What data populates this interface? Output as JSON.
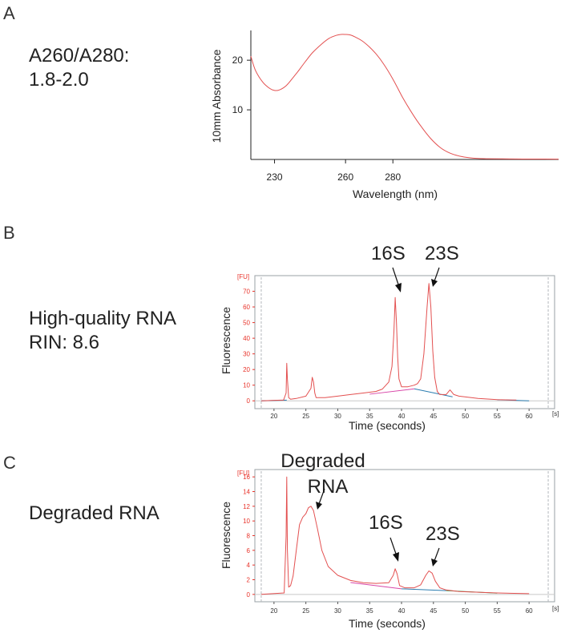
{
  "panels": [
    {
      "letter": "A",
      "side_text": [
        "A260/A280:",
        "1.8-2.0"
      ]
    },
    {
      "letter": "B",
      "side_text": [
        "High-quality RNA",
        "RIN: 8.6"
      ]
    },
    {
      "letter": "C",
      "side_text": [
        "Degraded RNA"
      ]
    }
  ],
  "colors": {
    "trace": "#e35050",
    "axis_red": "#e8332a",
    "baseline_blue": "#2b7db0",
    "baseline_pink": "#d846a8",
    "baseline_green": "#3a9a4a",
    "border": "#9aa0a6"
  },
  "chart_data": [
    {
      "id": "absorbance",
      "type": "line",
      "title": "",
      "xlabel": "Wavelength (nm)",
      "ylabel": "10mm Absorbance",
      "xlim": [
        220,
        350
      ],
      "ylim": [
        0,
        26
      ],
      "xticks": [
        230,
        260,
        280
      ],
      "yticks": [
        10,
        20
      ],
      "x": [
        220,
        222,
        225,
        228,
        230,
        232,
        235,
        238,
        240,
        243,
        246,
        250,
        253,
        256,
        258,
        260,
        262,
        264,
        267,
        270,
        273,
        276,
        280,
        284,
        288,
        292,
        296,
        300,
        304,
        308,
        312,
        316,
        320,
        330,
        340,
        350
      ],
      "y": [
        20.8,
        17.9,
        15.6,
        14.3,
        13.9,
        14.0,
        14.9,
        16.6,
        17.8,
        19.7,
        21.5,
        23.3,
        24.4,
        25.0,
        25.2,
        25.2,
        25.1,
        24.7,
        23.9,
        22.7,
        21.2,
        19.3,
        16.2,
        12.6,
        9.4,
        6.6,
        4.2,
        2.4,
        1.3,
        0.7,
        0.35,
        0.2,
        0.15,
        0.1,
        0.08,
        0.06
      ]
    },
    {
      "id": "electropherogram-high",
      "type": "line",
      "title": "",
      "xlabel": "Time (seconds)",
      "ylabel": "Fluorescence",
      "unit_y": "[FU]",
      "unit_x": "[s]",
      "xlim": [
        17,
        64
      ],
      "ylim": [
        -5,
        80
      ],
      "xticks": [
        20,
        25,
        30,
        35,
        40,
        45,
        50,
        55,
        60
      ],
      "yticks": [
        0,
        10,
        20,
        30,
        40,
        50,
        60,
        70
      ],
      "annotations": [
        "16S",
        "23S"
      ],
      "x": [
        18.0,
        21.5,
        21.9,
        22.0,
        22.1,
        22.3,
        22.6,
        23.5,
        25.0,
        25.8,
        26.0,
        26.2,
        26.4,
        26.6,
        28.0,
        30.0,
        32.0,
        34.0,
        36.0,
        37.0,
        38.0,
        38.5,
        38.8,
        39.0,
        39.2,
        39.4,
        39.6,
        40.0,
        41.0,
        42.0,
        42.5,
        43.0,
        43.5,
        44.0,
        44.3,
        44.6,
        44.9,
        45.2,
        45.6,
        46.0,
        47.0,
        47.6,
        48.2,
        49.0,
        52.0,
        55.0,
        58.0
      ],
      "y": [
        0.0,
        0.5,
        5.0,
        24.0,
        14.0,
        2.0,
        1.0,
        1.5,
        3.0,
        8.0,
        15.0,
        12.0,
        5.0,
        2.0,
        2.0,
        3.0,
        4.0,
        5.0,
        6.0,
        7.5,
        12.0,
        22.0,
        44.0,
        66.0,
        50.0,
        28.0,
        14.0,
        9.0,
        9.0,
        10.0,
        11.0,
        14.0,
        30.0,
        60.0,
        75.0,
        60.0,
        32.0,
        15.0,
        6.0,
        4.0,
        4.0,
        7.0,
        4.0,
        3.0,
        1.5,
        0.8,
        0.5
      ],
      "baseline_segments": [
        {
          "color": "baseline_blue",
          "x": [
            18,
            22
          ]
        },
        {
          "color": "baseline_pink",
          "x": [
            35,
            42
          ]
        },
        {
          "color": "baseline_blue",
          "x": [
            42,
            48
          ]
        },
        {
          "color": "baseline_blue",
          "x": [
            55,
            60
          ]
        }
      ]
    },
    {
      "id": "electropherogram-degraded",
      "type": "line",
      "title": "",
      "xlabel": "Time (seconds)",
      "ylabel": "Fluorescence",
      "unit_y": "[FU]",
      "unit_x": "[s]",
      "xlim": [
        17,
        64
      ],
      "ylim": [
        -1,
        17
      ],
      "xticks": [
        20,
        25,
        30,
        35,
        40,
        45,
        50,
        55,
        60
      ],
      "yticks": [
        0,
        2,
        4,
        6,
        8,
        10,
        12,
        14,
        16
      ],
      "annotations": [
        "Degraded RNA",
        "16S",
        "23S"
      ],
      "x": [
        18.0,
        21.6,
        21.9,
        22.0,
        22.1,
        22.3,
        22.6,
        23.0,
        23.5,
        24.0,
        24.5,
        25.0,
        25.4,
        25.8,
        26.2,
        26.8,
        27.5,
        28.5,
        30.0,
        32.0,
        34.0,
        36.0,
        38.0,
        38.7,
        39.0,
        39.3,
        39.7,
        40.5,
        42.0,
        43.0,
        43.8,
        44.3,
        44.8,
        45.3,
        46.0,
        47.0,
        49.0,
        52.0,
        55.0,
        60.0
      ],
      "y": [
        0.0,
        0.2,
        8.0,
        16.0,
        6.0,
        1.0,
        1.2,
        2.5,
        6.0,
        9.5,
        10.5,
        11.0,
        11.8,
        12.0,
        11.4,
        9.0,
        6.0,
        3.8,
        2.6,
        1.9,
        1.6,
        1.5,
        1.6,
        2.6,
        3.5,
        2.8,
        1.2,
        0.9,
        0.9,
        1.3,
        2.6,
        3.2,
        2.9,
        1.8,
        0.9,
        0.6,
        0.4,
        0.3,
        0.2,
        0.1
      ],
      "baseline_segments": [
        {
          "color": "baseline_pink",
          "x": [
            32,
            40
          ]
        },
        {
          "color": "baseline_blue",
          "x": [
            40,
            47
          ]
        },
        {
          "color": "baseline_green",
          "x": [
            47,
            55
          ]
        }
      ]
    }
  ]
}
